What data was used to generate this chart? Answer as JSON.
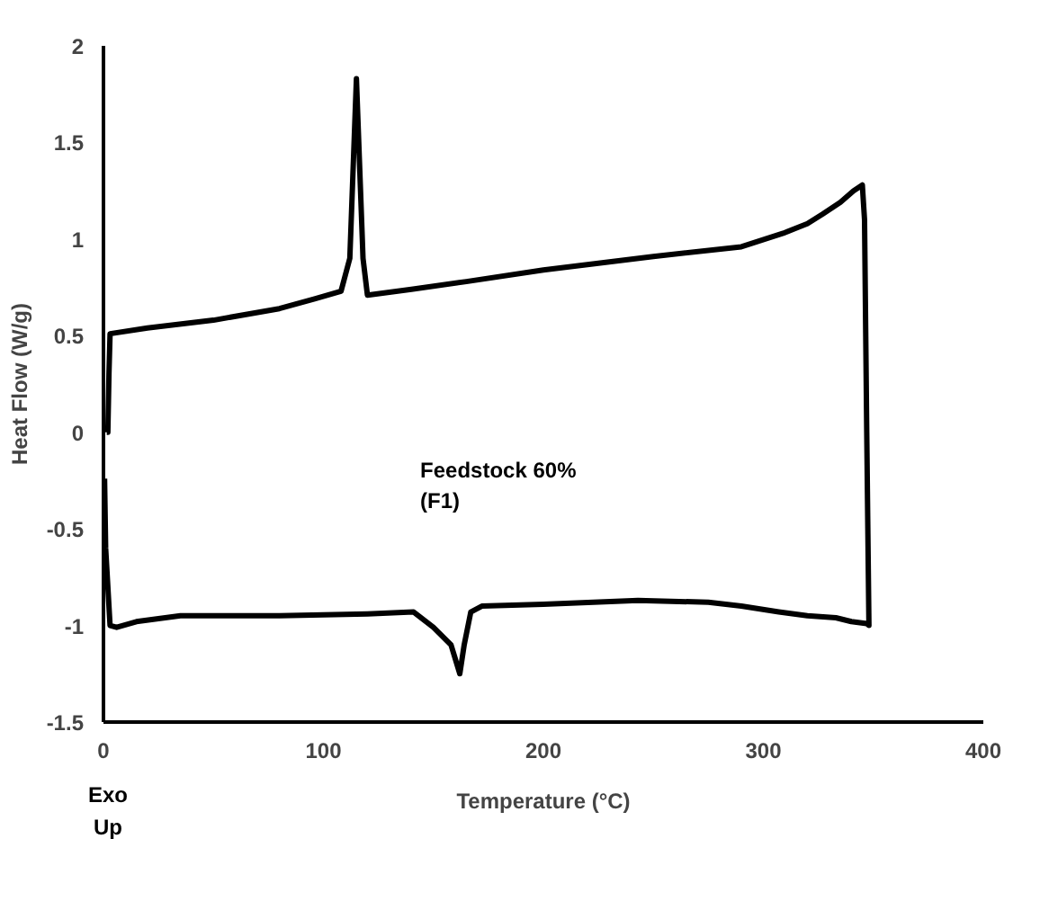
{
  "chart_data": {
    "type": "line",
    "xlabel": "Temperature (°C)",
    "ylabel": "Heat Flow (W/g)",
    "xlim": [
      0,
      400
    ],
    "xticks": [
      0,
      100,
      200,
      300,
      400
    ],
    "ylim": [
      -1.5,
      2
    ],
    "yticks": [
      -1.5,
      -1,
      -0.5,
      0,
      0.5,
      1,
      1.5,
      2
    ],
    "grid": false,
    "series": [
      {
        "color": "#000000",
        "x": [
          1.5,
          2.0,
          2.5,
          3,
          20,
          50,
          80,
          96,
          108,
          112,
          115,
          118,
          120,
          140,
          165,
          200,
          250,
          290,
          309,
          320,
          327,
          335,
          341,
          345,
          346,
          347,
          348,
          347,
          340,
          333,
          320,
          307,
          290,
          275,
          243,
          200,
          172,
          167,
          164,
          162,
          158,
          150,
          141,
          120,
          80,
          35,
          15,
          6,
          3,
          1,
          0.5
        ],
        "values": [
          0.0,
          0.0,
          0.3,
          0.51,
          0.54,
          0.58,
          0.64,
          0.69,
          0.73,
          0.9,
          1.83,
          0.9,
          0.71,
          0.74,
          0.78,
          0.84,
          0.91,
          0.96,
          1.03,
          1.08,
          1.13,
          1.19,
          1.25,
          1.28,
          1.1,
          0.0,
          -1.0,
          -0.99,
          -0.98,
          -0.96,
          -0.95,
          -0.93,
          -0.9,
          -0.88,
          -0.87,
          -0.89,
          -0.9,
          -0.93,
          -1.1,
          -1.25,
          -1.1,
          -1.01,
          -0.93,
          -0.94,
          -0.95,
          -0.95,
          -0.98,
          -1.01,
          -1.0,
          -0.6,
          -0.24
        ]
      }
    ],
    "annotations": [
      "Feedstock 60%\n(F1)",
      "Exo\nUp"
    ]
  }
}
